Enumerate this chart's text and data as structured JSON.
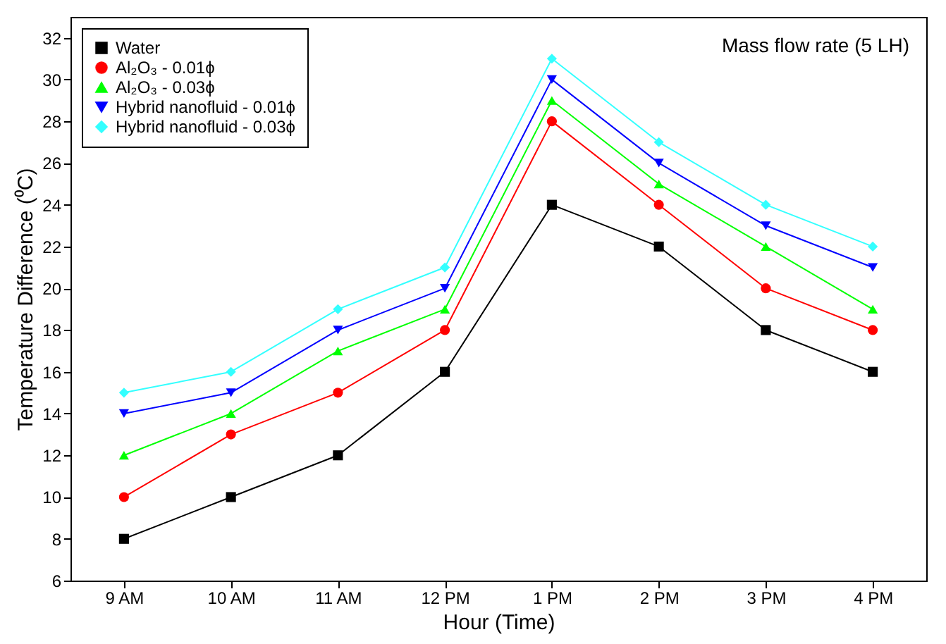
{
  "chart_data": {
    "type": "line",
    "xlabel": "Hour (Time)",
    "ylabel": "Temperature Difference (⁰C)",
    "categories": [
      "9 AM",
      "10 AM",
      "11 AM",
      "12 PM",
      "1 PM",
      "2 PM",
      "3 PM",
      "4 PM"
    ],
    "series": [
      {
        "name": "Water",
        "color": "#000000",
        "marker": "square",
        "values": [
          8,
          10,
          12,
          16,
          24,
          22,
          18,
          16
        ]
      },
      {
        "name": "Al₂O₃ - 0.01ϕ",
        "color": "#ff0000",
        "marker": "circle",
        "values": [
          10,
          13,
          15,
          18,
          28,
          24,
          20,
          18
        ]
      },
      {
        "name": "Al₂O₃ - 0.03ϕ",
        "color": "#00ff00",
        "marker": "triangle",
        "values": [
          12,
          14,
          17,
          19,
          29,
          25,
          22,
          19
        ]
      },
      {
        "name": "Hybrid nanofluid - 0.01ϕ",
        "color": "#0000ff",
        "marker": "triangle-down",
        "values": [
          14,
          15,
          18,
          20,
          30,
          26,
          23,
          21
        ]
      },
      {
        "name": "Hybrid nanofluid - 0.03ϕ",
        "color": "#33ffff",
        "marker": "diamond",
        "values": [
          15,
          16,
          19,
          21,
          31,
          27,
          24,
          22
        ]
      }
    ],
    "ylim": [
      6,
      33
    ],
    "yticks": [
      6,
      8,
      10,
      12,
      14,
      16,
      18,
      20,
      22,
      24,
      26,
      28,
      30,
      32
    ],
    "annotations": [
      "Mass flow rate (5 LH)"
    ],
    "legend": "top left",
    "grid": false,
    "line_style": "solid"
  }
}
